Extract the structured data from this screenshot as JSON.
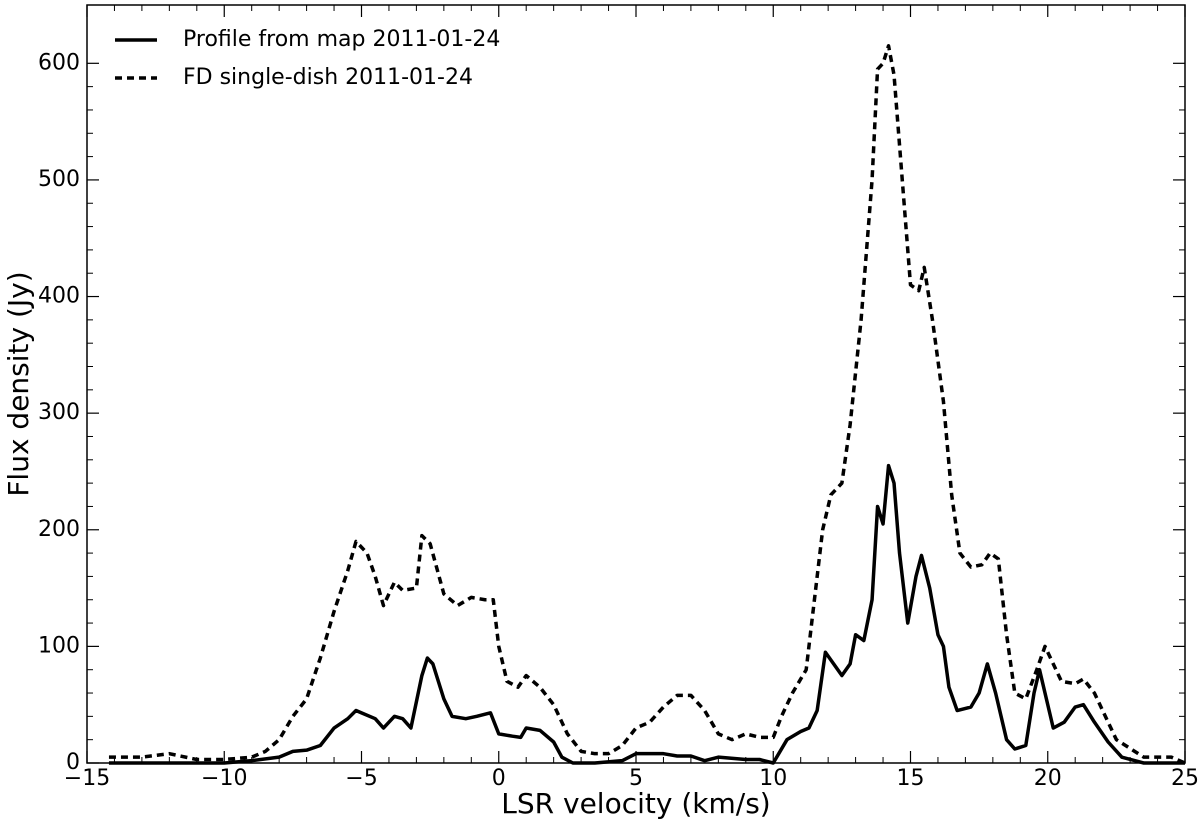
{
  "chart_data": {
    "type": "line",
    "xlabel": "LSR velocity (km/s)",
    "ylabel": "Flux density (Jy)",
    "xlim": [
      -15,
      25
    ],
    "ylim": [
      0,
      650
    ],
    "xticks": [
      {
        "value": -15,
        "label": "−15"
      },
      {
        "value": -10,
        "label": "−10"
      },
      {
        "value": -5,
        "label": "−5"
      },
      0,
      5,
      10,
      15,
      20,
      25
    ],
    "yticks": [
      0,
      100,
      200,
      300,
      400,
      500,
      600
    ],
    "grid": false,
    "legend": "upper left",
    "series": [
      {
        "name": "Profile from map 2011-01-24",
        "color": "#000000",
        "style": "solid",
        "x": [
          -14.2,
          -12,
          -10,
          -9,
          -8,
          -7.5,
          -7,
          -6.5,
          -6,
          -5.5,
          -5.2,
          -5,
          -4.5,
          -4.2,
          -3.8,
          -3.5,
          -3.2,
          -2.8,
          -2.6,
          -2.4,
          -2,
          -1.7,
          -1.2,
          -0.8,
          -0.3,
          0,
          0.5,
          0.8,
          1,
          1.5,
          2,
          2.3,
          2.7,
          3.5,
          4.5,
          5,
          6,
          6.5,
          7,
          7.5,
          8,
          9,
          9.5,
          10,
          10.5,
          11,
          11.3,
          11.6,
          11.9,
          12.2,
          12.5,
          12.8,
          13,
          13.3,
          13.6,
          13.8,
          14,
          14.2,
          14.4,
          14.6,
          14.9,
          15.2,
          15.4,
          15.7,
          16,
          16.2,
          16.4,
          16.7,
          17.2,
          17.5,
          17.8,
          18.1,
          18.5,
          18.8,
          19.2,
          19.5,
          19.7,
          19.9,
          20.2,
          20.6,
          21,
          21.3,
          21.7,
          22.2,
          22.7,
          23.5,
          25
        ],
        "values": [
          0,
          0,
          0,
          2,
          5,
          10,
          11,
          15,
          30,
          38,
          45,
          43,
          38,
          30,
          40,
          38,
          30,
          75,
          90,
          85,
          55,
          40,
          38,
          40,
          43,
          25,
          23,
          22,
          30,
          28,
          18,
          5,
          0,
          0,
          2,
          8,
          8,
          6,
          6,
          2,
          5,
          3,
          3,
          0,
          20,
          27,
          30,
          45,
          95,
          85,
          75,
          85,
          110,
          105,
          140,
          220,
          205,
          255,
          240,
          180,
          120,
          160,
          178,
          150,
          110,
          100,
          65,
          45,
          48,
          60,
          85,
          60,
          20,
          12,
          15,
          60,
          80,
          60,
          30,
          35,
          48,
          50,
          35,
          18,
          5,
          0,
          0
        ]
      },
      {
        "name": "FD single-dish 2011-01-24",
        "color": "#000000",
        "style": "dashed",
        "x": [
          -14.2,
          -13,
          -12,
          -11,
          -10,
          -9,
          -8.5,
          -8,
          -7.5,
          -7,
          -6.5,
          -6,
          -5.5,
          -5.2,
          -4.8,
          -4.5,
          -4.2,
          -3.8,
          -3.5,
          -3,
          -2.8,
          -2.5,
          -2,
          -1.5,
          -1,
          -0.5,
          -0.2,
          0,
          0.3,
          0.7,
          1,
          1.5,
          2,
          2.5,
          3,
          3.5,
          4,
          4.5,
          5,
          5.5,
          6,
          6.5,
          7,
          7.5,
          8,
          8.5,
          9,
          9.5,
          10,
          10.3,
          10.7,
          11.2,
          11.5,
          11.8,
          12.1,
          12.5,
          12.8,
          13.2,
          13.6,
          13.8,
          14,
          14.2,
          14.4,
          14.7,
          15,
          15.3,
          15.5,
          15.8,
          16.2,
          16.5,
          16.8,
          17.2,
          17.6,
          17.9,
          18.2,
          18.5,
          18.8,
          19.2,
          19.6,
          19.9,
          20.2,
          20.5,
          21,
          21.3,
          21.7,
          22,
          22.5,
          23.5,
          24.5,
          25
        ],
        "values": [
          5,
          5,
          8,
          3,
          3,
          5,
          10,
          20,
          40,
          55,
          90,
          130,
          165,
          190,
          180,
          160,
          135,
          155,
          148,
          150,
          195,
          188,
          145,
          135,
          142,
          140,
          140,
          100,
          70,
          65,
          75,
          65,
          50,
          25,
          10,
          8,
          8,
          15,
          30,
          35,
          48,
          58,
          58,
          45,
          25,
          20,
          25,
          22,
          22,
          40,
          60,
          80,
          140,
          200,
          230,
          240,
          290,
          380,
          500,
          595,
          600,
          615,
          590,
          500,
          410,
          405,
          425,
          380,
          310,
          230,
          180,
          168,
          170,
          180,
          175,
          110,
          60,
          55,
          80,
          100,
          85,
          70,
          68,
          72,
          60,
          45,
          20,
          5,
          5,
          0
        ]
      }
    ]
  }
}
